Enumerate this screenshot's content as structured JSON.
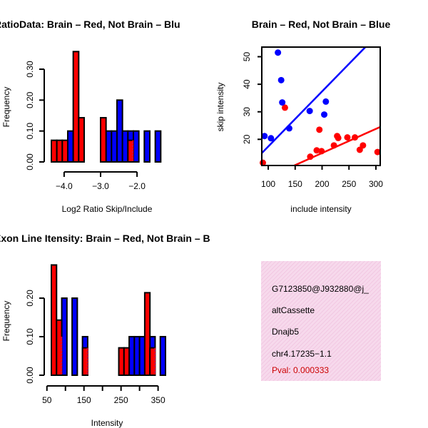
{
  "chart_data": [
    {
      "id": "ratio_hist",
      "type": "bar",
      "title": "RatioData: Brain – Red, Not Brain – Blu",
      "xlabel": "Log2 Ratio Skip/Include",
      "ylabel": "Frequency",
      "xlim": [
        -4.35,
        -1.2
      ],
      "ylim": [
        0,
        0.36
      ],
      "x_ticks": [
        -4.0,
        -3.0,
        -2.0
      ],
      "x_tick_labels": [
        "−4.0",
        "−3.0",
        "−2.0"
      ],
      "y_ticks": [
        0.0,
        0.1,
        0.2,
        0.3
      ],
      "y_tick_labels": [
        "0.00",
        "0.10",
        "0.20",
        "0.30"
      ],
      "bin_width": 0.15,
      "series": [
        {
          "name": "Brain",
          "color": "#ff0000",
          "bins": [
            {
              "x0": -4.35,
              "value": 0.07
            },
            {
              "x0": -4.2,
              "value": 0.07
            },
            {
              "x0": -4.05,
              "value": 0.07
            },
            {
              "x0": -3.75,
              "value": 0.357
            },
            {
              "x0": -3.6,
              "value": 0.143
            },
            {
              "x0": -3.0,
              "value": 0.143
            },
            {
              "x0": -2.25,
              "value": 0.07
            }
          ]
        },
        {
          "name": "Not Brain",
          "color": "#0000ff",
          "bins": [
            {
              "x0": -3.9,
              "value": 0.1
            },
            {
              "x0": -2.85,
              "value": 0.1
            },
            {
              "x0": -2.7,
              "value": 0.1
            },
            {
              "x0": -2.55,
              "value": 0.2
            },
            {
              "x0": -2.4,
              "value": 0.1
            },
            {
              "x0": -2.25,
              "value": 0.1
            },
            {
              "x0": -2.1,
              "value": 0.1
            },
            {
              "x0": -1.8,
              "value": 0.1
            },
            {
              "x0": -1.5,
              "value": 0.1
            }
          ]
        }
      ]
    },
    {
      "id": "scatter",
      "type": "scatter",
      "title": "Brain – Red, Not Brain – Blue",
      "xlabel": "include intensity",
      "ylabel": "skip intensity",
      "xlim": [
        88,
        308
      ],
      "ylim": [
        10.5,
        53.5
      ],
      "x_ticks": [
        100,
        150,
        200,
        250,
        300
      ],
      "y_ticks": [
        20,
        30,
        40,
        50
      ],
      "series": [
        {
          "name": "Brain",
          "color": "#ff0000",
          "points": [
            [
              90,
              11.5
            ],
            [
              131,
              31.5
            ],
            [
              178,
              13.7
            ],
            [
              190,
              16.0
            ],
            [
              195,
              23.5
            ],
            [
              199,
              15.7
            ],
            [
              222,
              17.8
            ],
            [
              228,
              21.2
            ],
            [
              230,
              20.5
            ],
            [
              247,
              20.7
            ],
            [
              261,
              20.7
            ],
            [
              270,
              16.2
            ],
            [
              276,
              17.8
            ],
            [
              303,
              15.4
            ]
          ],
          "fit": {
            "x": [
              88,
              308
            ],
            "y": [
              5.2,
              24.5
            ]
          }
        },
        {
          "name": "Not Brain",
          "color": "#0000ff",
          "points": [
            [
              93,
              21.2
            ],
            [
              105,
              20.4
            ],
            [
              118,
              51.5
            ],
            [
              124,
              41.5
            ],
            [
              126,
              33.4
            ],
            [
              139,
              24.0
            ],
            [
              177,
              30.3
            ],
            [
              204,
              29.0
            ],
            [
              207,
              33.7
            ]
          ],
          "fit": {
            "x": [
              88,
              308
            ],
            "y": [
              15.0,
              59.0
            ]
          }
        }
      ]
    },
    {
      "id": "intensity_hist",
      "type": "bar",
      "title": "Exon Line Itensity: Brain – Red, Not Brain – B",
      "xlabel": "Intensity",
      "ylabel": "Frequency",
      "xlim": [
        62,
        370
      ],
      "ylim": [
        0,
        0.285
      ],
      "x_ticks": [
        50,
        150,
        250,
        350
      ],
      "x_tick_labels": [
        "50",
        "150",
        "250",
        "350"
      ],
      "x_minor_ticks": [
        100,
        200,
        300
      ],
      "y_ticks": [
        0.0,
        0.1,
        0.2
      ],
      "y_tick_labels": [
        "0.00",
        "0.10",
        "0.20"
      ],
      "bin_width": 14,
      "series": [
        {
          "name": "Brain",
          "color": "#ff0000",
          "bins": [
            {
              "x0": 62,
              "value": 0.286
            },
            {
              "x0": 76,
              "value": 0.143
            },
            {
              "x0": 146,
              "value": 0.071
            },
            {
              "x0": 244,
              "value": 0.071
            },
            {
              "x0": 258,
              "value": 0.071
            },
            {
              "x0": 314,
              "value": 0.214
            },
            {
              "x0": 328,
              "value": 0.071
            }
          ]
        },
        {
          "name": "Not Brain",
          "color": "#0000ff",
          "bins": [
            {
              "x0": 76,
              "value": 0.1
            },
            {
              "x0": 90,
              "value": 0.2
            },
            {
              "x0": 118,
              "value": 0.2
            },
            {
              "x0": 146,
              "value": 0.1
            },
            {
              "x0": 272,
              "value": 0.1
            },
            {
              "x0": 286,
              "value": 0.1
            },
            {
              "x0": 300,
              "value": 0.1
            },
            {
              "x0": 328,
              "value": 0.1
            },
            {
              "x0": 356,
              "value": 0.1
            }
          ]
        }
      ]
    }
  ],
  "info_box": {
    "probe": "G7123850@J932880@j_",
    "event_type": "altCassette",
    "gene": "Dnajb5",
    "location": "chr4.17235−1.1",
    "pval": "Pval: 0.000333",
    "fill_color": "#f7d9ec"
  }
}
